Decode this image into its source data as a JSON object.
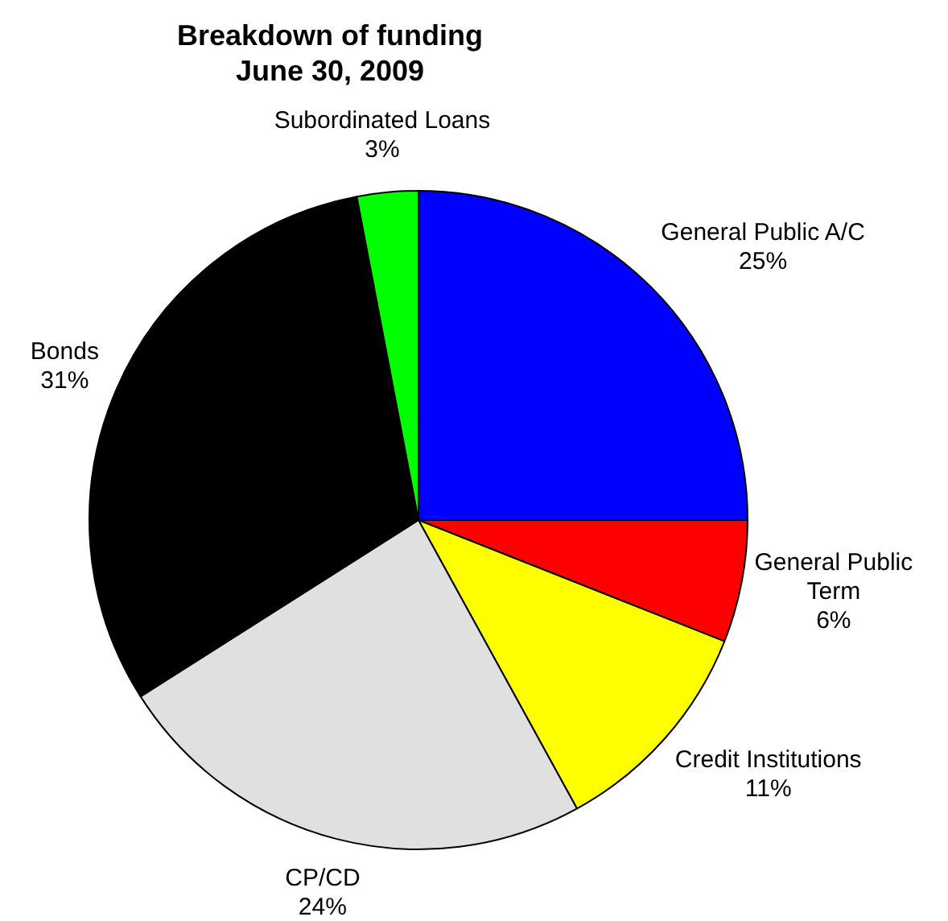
{
  "chart_data": {
    "type": "pie",
    "title": "Breakdown of funding\nJune 30, 2009",
    "categories": [
      "General Public A/C",
      "General Public Term",
      "Credit Institutions",
      "CP/CD",
      "Bonds",
      "Subordinated Loans"
    ],
    "values": [
      25,
      6,
      11,
      24,
      31,
      3
    ],
    "colors": [
      "#0000ff",
      "#ff0000",
      "#ffff00",
      "#e0e0e0",
      "#000000",
      "#00ff00"
    ],
    "value_labels": [
      "25%",
      "6%",
      "11%",
      "24%",
      "31%",
      "3%"
    ],
    "legend": false
  }
}
